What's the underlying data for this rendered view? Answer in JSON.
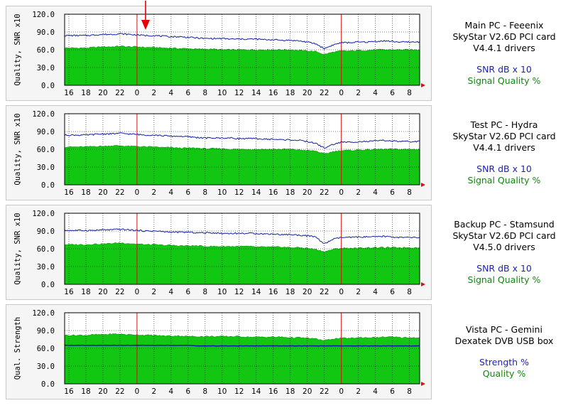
{
  "colors": {
    "snr_line": "#0d1fa8",
    "quality_fill": "#11c711",
    "quality_edge": "#0a9a0a",
    "midnight_line": "#d81010",
    "grid": "#000000",
    "plot_bg": "#ffffff",
    "arrow": "#e60000"
  },
  "marker": {
    "icon": "red-down-arrow-icon",
    "x_hour": 1
  },
  "chart_data": [
    {
      "type": "area",
      "ylabel": "Quality, SNR x10",
      "ylim": [
        0,
        120
      ],
      "yticks": [
        "0.0",
        "30.0",
        "60.0",
        "90.0",
        "120.0"
      ],
      "xticks": [
        "16",
        "18",
        "20",
        "22",
        "0",
        "2",
        "4",
        "6",
        "8",
        "10",
        "12",
        "14",
        "16",
        "18",
        "20",
        "22",
        "0",
        "2",
        "4",
        "6",
        "8"
      ],
      "midnight_hours": [
        8,
        32
      ],
      "x_range_hours": [
        -0.5,
        41.2
      ],
      "series": [
        {
          "name": "SNR dB x 10",
          "kind": "line",
          "values": [
            84,
            84,
            84,
            85,
            86,
            86,
            87,
            86,
            85,
            84,
            84,
            83,
            82,
            82,
            81,
            80,
            79,
            79,
            79,
            78,
            78,
            78,
            78,
            77,
            77,
            76,
            76,
            75,
            73,
            70,
            62,
            68,
            72,
            72,
            73,
            73,
            74,
            75,
            74,
            73,
            73,
            73,
            75
          ]
        },
        {
          "name": "Signal Quality %",
          "kind": "area",
          "values": [
            63,
            63,
            63,
            64,
            65,
            65,
            66,
            65,
            65,
            64,
            64,
            63,
            63,
            62,
            62,
            61,
            61,
            61,
            60,
            60,
            60,
            60,
            60,
            60,
            60,
            60,
            60,
            59,
            58,
            57,
            52,
            56,
            58,
            58,
            59,
            59,
            60,
            60,
            60,
            60,
            60,
            60,
            62
          ]
        }
      ],
      "legend": [
        "Main PC - Feeenix",
        "SkyStar V2.6D PCI card",
        "V4.4.1 drivers",
        "SNR dB x 10",
        "Signal Quality %"
      ]
    },
    {
      "type": "area",
      "ylabel": "Quality, SNR x10",
      "ylim": [
        0,
        120
      ],
      "yticks": [
        "0.0",
        "30.0",
        "60.0",
        "90.0",
        "120.0"
      ],
      "xticks": [
        "16",
        "18",
        "20",
        "22",
        "0",
        "2",
        "4",
        "6",
        "8",
        "10",
        "12",
        "14",
        "16",
        "18",
        "20",
        "22",
        "0",
        "2",
        "4",
        "6",
        "8"
      ],
      "midnight_hours": [
        8,
        32
      ],
      "x_range_hours": [
        -0.5,
        41.2
      ],
      "series": [
        {
          "name": "SNR dB x 10",
          "kind": "line",
          "values": [
            84,
            84,
            84,
            85,
            86,
            86,
            87,
            86,
            85,
            84,
            84,
            83,
            82,
            82,
            81,
            80,
            79,
            79,
            79,
            79,
            78,
            78,
            78,
            77,
            77,
            76,
            76,
            75,
            73,
            70,
            62,
            68,
            72,
            72,
            73,
            73,
            74,
            75,
            74,
            73,
            73,
            73,
            75
          ]
        },
        {
          "name": "Signal Quality %",
          "kind": "area",
          "values": [
            64,
            64,
            64,
            65,
            65,
            66,
            66,
            65,
            65,
            64,
            64,
            63,
            63,
            62,
            62,
            62,
            61,
            61,
            61,
            60,
            60,
            60,
            60,
            60,
            60,
            60,
            60,
            59,
            58,
            57,
            52,
            56,
            58,
            58,
            59,
            59,
            60,
            60,
            60,
            60,
            60,
            60,
            62
          ]
        }
      ],
      "legend": [
        "Test PC - Hydra",
        "SkyStar V2.6D PCI card",
        "V4.4.1 drivers",
        "SNR dB x 10",
        "Signal Quality %"
      ]
    },
    {
      "type": "area",
      "ylabel": "Quality, SNR x10",
      "ylim": [
        0,
        120
      ],
      "yticks": [
        "0.0",
        "30.0",
        "60.0",
        "90.0",
        "120.0"
      ],
      "xticks": [
        "16",
        "18",
        "20",
        "22",
        "0",
        "2",
        "4",
        "6",
        "8",
        "10",
        "12",
        "14",
        "16",
        "18",
        "20",
        "22",
        "0",
        "2",
        "4",
        "6",
        "8"
      ],
      "midnight_hours": [
        8,
        32
      ],
      "x_range_hours": [
        -0.5,
        41.2
      ],
      "series": [
        {
          "name": "SNR dB x 10",
          "kind": "line",
          "values": [
            91,
            91,
            91,
            91,
            92,
            92,
            93,
            92,
            91,
            90,
            90,
            89,
            88,
            88,
            88,
            87,
            87,
            87,
            86,
            86,
            86,
            86,
            86,
            85,
            85,
            84,
            84,
            83,
            82,
            80,
            68,
            76,
            79,
            79,
            80,
            80,
            80,
            81,
            80,
            79,
            79,
            79,
            79
          ]
        },
        {
          "name": "Signal Quality %",
          "kind": "area",
          "values": [
            67,
            67,
            67,
            68,
            68,
            69,
            70,
            69,
            68,
            67,
            67,
            66,
            66,
            65,
            65,
            65,
            64,
            64,
            64,
            64,
            64,
            64,
            63,
            63,
            63,
            63,
            62,
            62,
            61,
            59,
            55,
            59,
            61,
            61,
            61,
            62,
            62,
            62,
            62,
            62,
            62,
            62,
            62
          ]
        }
      ],
      "legend": [
        "Backup PC - Stamsund",
        "SkyStar V2.6D PCI card",
        "V4.5.0 drivers",
        "SNR dB x 10",
        "Signal Quality %"
      ]
    },
    {
      "type": "area",
      "ylabel": "Qual. Strength",
      "ylim": [
        0,
        120
      ],
      "yticks": [
        "0.0",
        "30.0",
        "60.0",
        "90.0",
        "120.0"
      ],
      "xticks": [
        "16",
        "18",
        "20",
        "22",
        "0",
        "2",
        "4",
        "6",
        "8",
        "10",
        "12",
        "14",
        "16",
        "18",
        "20",
        "22",
        "0",
        "2",
        "4",
        "6",
        "8"
      ],
      "midnight_hours": [
        8,
        32
      ],
      "x_range_hours": [
        -0.5,
        41.2
      ],
      "series": [
        {
          "name": "Strength %",
          "kind": "line",
          "values": [
            65,
            65,
            65,
            65,
            65,
            65,
            65,
            65,
            65,
            65,
            65,
            65,
            65,
            65,
            65,
            64,
            64,
            64,
            64,
            64,
            64,
            64,
            64,
            64,
            64,
            64,
            64,
            64,
            64,
            64,
            64,
            64,
            64,
            64,
            64,
            64,
            64,
            64,
            64,
            64,
            64,
            64,
            64
          ]
        },
        {
          "name": "Quality %",
          "kind": "area",
          "values": [
            82,
            82,
            82,
            83,
            83,
            84,
            84,
            83,
            83,
            82,
            82,
            81,
            81,
            81,
            80,
            80,
            80,
            80,
            80,
            80,
            80,
            79,
            79,
            79,
            79,
            79,
            78,
            78,
            77,
            76,
            73,
            76,
            77,
            77,
            78,
            78,
            78,
            79,
            79,
            78,
            78,
            78,
            79
          ]
        }
      ],
      "legend": [
        "Vista PC - Gemini",
        "Dexatek DVB USB box",
        "",
        "Strength %",
        "Quality %"
      ]
    }
  ]
}
